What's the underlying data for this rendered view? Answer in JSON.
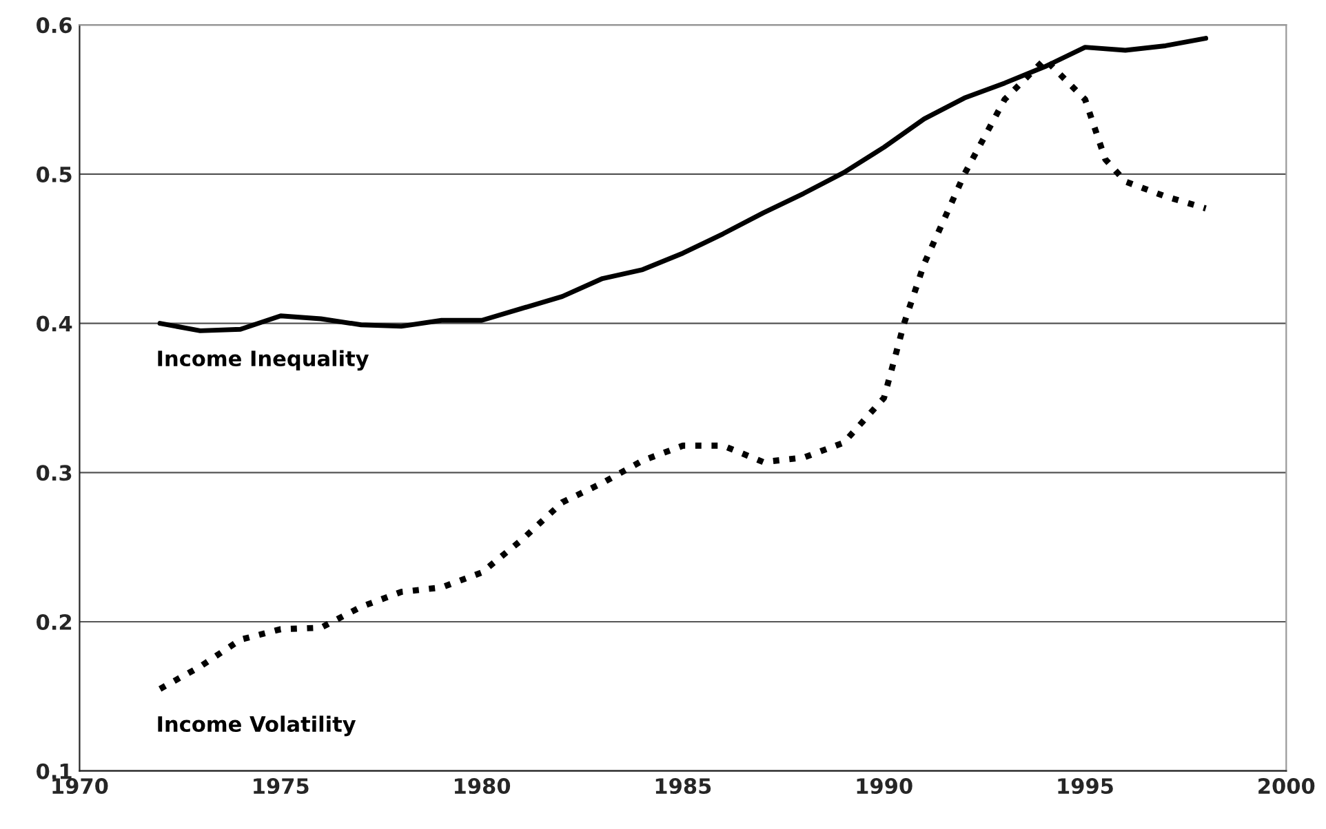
{
  "chart_data": {
    "type": "line",
    "xlim": [
      1970,
      2000
    ],
    "xticks": [
      1970,
      1975,
      1980,
      1985,
      1990,
      1995,
      2000
    ],
    "ylim": [
      0.1,
      0.6
    ],
    "yticks": [
      0.1,
      0.2,
      0.3,
      0.4,
      0.5,
      0.6
    ],
    "grid": "y",
    "legend": false,
    "marker": "none",
    "series": [
      {
        "name": "Income Inequality",
        "color": "#000000",
        "line_style": "solid",
        "x": [
          1972,
          1973,
          1974,
          1975,
          1976,
          1977,
          1978,
          1979,
          1980,
          1981,
          1982,
          1983,
          1984,
          1985,
          1986,
          1987,
          1988,
          1989,
          1990,
          1991,
          1992,
          1993,
          1994,
          1995,
          1996,
          1997,
          1998
        ],
        "values": [
          0.4,
          0.395,
          0.396,
          0.405,
          0.403,
          0.399,
          0.398,
          0.402,
          0.402,
          0.41,
          0.418,
          0.43,
          0.436,
          0.447,
          0.46,
          0.474,
          0.487,
          0.501,
          0.518,
          0.537,
          0.551,
          0.561,
          0.572,
          0.585,
          0.583,
          0.586,
          0.591
        ]
      },
      {
        "name": "Income Volatility",
        "color": "#000000",
        "line_style": "dotted",
        "x": [
          1972,
          1973,
          1974,
          1975,
          1976,
          1977,
          1978,
          1979,
          1980,
          1981,
          1982,
          1983,
          1984,
          1985,
          1986,
          1987,
          1988,
          1989,
          1990,
          1990.5,
          1991,
          1992,
          1993,
          1994,
          1995,
          1995.5,
          1996,
          1997,
          1998
        ],
        "values": [
          0.155,
          0.17,
          0.188,
          0.195,
          0.196,
          0.21,
          0.22,
          0.223,
          0.233,
          0.255,
          0.28,
          0.293,
          0.308,
          0.318,
          0.318,
          0.307,
          0.31,
          0.32,
          0.35,
          0.4,
          0.44,
          0.5,
          0.55,
          0.577,
          0.55,
          0.51,
          0.495,
          0.485,
          0.477
        ]
      }
    ]
  }
}
